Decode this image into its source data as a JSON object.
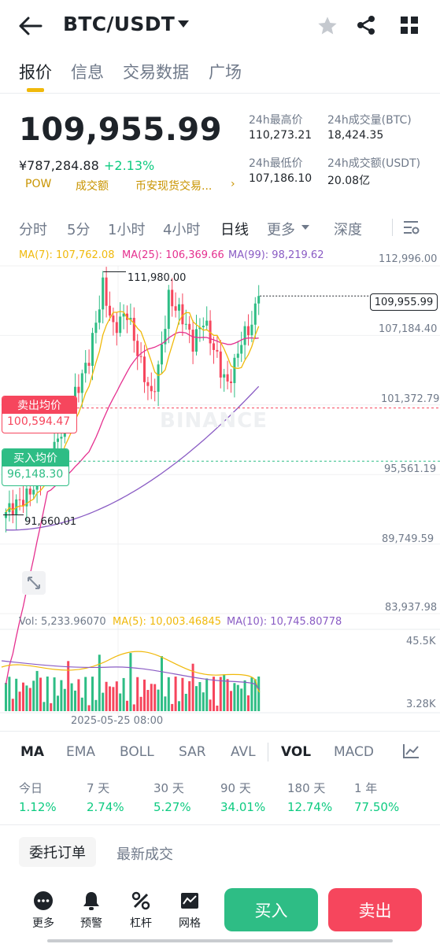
{
  "header": {
    "pair": "BTC/USDT"
  },
  "tabs": [
    {
      "label": "报价"
    },
    {
      "label": "信息"
    },
    {
      "label": "交易数据"
    },
    {
      "label": "广场"
    }
  ],
  "price": {
    "last": "109,955.99",
    "cny": "¥787,284.88",
    "change": "+2.13%",
    "tags": [
      "POW",
      "成交额",
      "币安现货交易..."
    ],
    "tags_more": "›"
  },
  "stats": {
    "high_label": "24h最高价",
    "high_value": "110,273.21",
    "low_label": "24h最低价",
    "low_value": "107,186.10",
    "vol_btc_label": "24h成交量(BTC)",
    "vol_btc_value": "18,424.35",
    "vol_usdt_label": "24h成交额(USDT)",
    "vol_usdt_value": "20.08亿"
  },
  "intervals": [
    {
      "label": "分时"
    },
    {
      "label": "5分"
    },
    {
      "label": "1小时"
    },
    {
      "label": "4小时"
    },
    {
      "label": "日线"
    },
    {
      "label": "更多"
    },
    {
      "label": "深度"
    }
  ],
  "chart_legend": {
    "ma7": "MA(7): 107,762.08",
    "ma25": "MA(25): 106,369.66",
    "ma99": "MA(99): 98,219.62",
    "vol": "Vol: 5,233.96070",
    "vma5": "MA(5): 10,003.46845",
    "vma10": "MA(10): 10,745.80778"
  },
  "chart_axis": {
    "y_ticks": [
      "112,996.00",
      "107,184.40",
      "101,372.79",
      "95,561.19",
      "89,749.59",
      "83,937.98"
    ],
    "vol_ticks": [
      "45.5K",
      "3.28K"
    ],
    "x_label": "2025-05-25 08:00",
    "high_marker": "111,980.00",
    "low_marker": "91,660.01",
    "current_price_tag": "109,955.99"
  },
  "avg_lines": {
    "sell_label": "卖出均价",
    "sell_value": "100,594.47",
    "buy_label": "买入均价",
    "buy_value": "96,148.30"
  },
  "watermark": "BINANCE",
  "chart_data": {
    "type": "candlestick",
    "ylim": [
      83937.98,
      112996.0
    ],
    "y_ticks": [
      112996.0,
      107184.4,
      101372.79,
      95561.19,
      89749.59,
      83937.98
    ],
    "high": 111980.0,
    "low": 91660.01,
    "last": 109955.99,
    "sell_avg": 100594.47,
    "buy_avg": 96148.3
  },
  "indicators": [
    {
      "label": "MA"
    },
    {
      "label": "EMA"
    },
    {
      "label": "BOLL"
    },
    {
      "label": "SAR"
    },
    {
      "label": "AVL"
    },
    {
      "label": "VOL"
    },
    {
      "label": "MACD"
    }
  ],
  "performance": [
    {
      "label": "今日",
      "value": "1.12%"
    },
    {
      "label": "7 天",
      "value": "2.74%"
    },
    {
      "label": "30 天",
      "value": "5.27%"
    },
    {
      "label": "90 天",
      "value": "34.01%"
    },
    {
      "label": "180 天",
      "value": "12.74%"
    },
    {
      "label": "1 年",
      "value": "77.50%"
    }
  ],
  "orders": {
    "open_orders": "委托订单",
    "latest_trades": "最新成交"
  },
  "bottom_bar": {
    "more": "更多",
    "alert": "预警",
    "leverage": "杠杆",
    "grid": "网格",
    "buy": "买入",
    "sell": "卖出"
  },
  "colors": {
    "up": "#2ebd85",
    "down": "#f6465d",
    "accent": "#f0b90b",
    "ma7": "#f0b90b",
    "ma25": "#e5308f",
    "ma99": "#8a5cc4"
  }
}
